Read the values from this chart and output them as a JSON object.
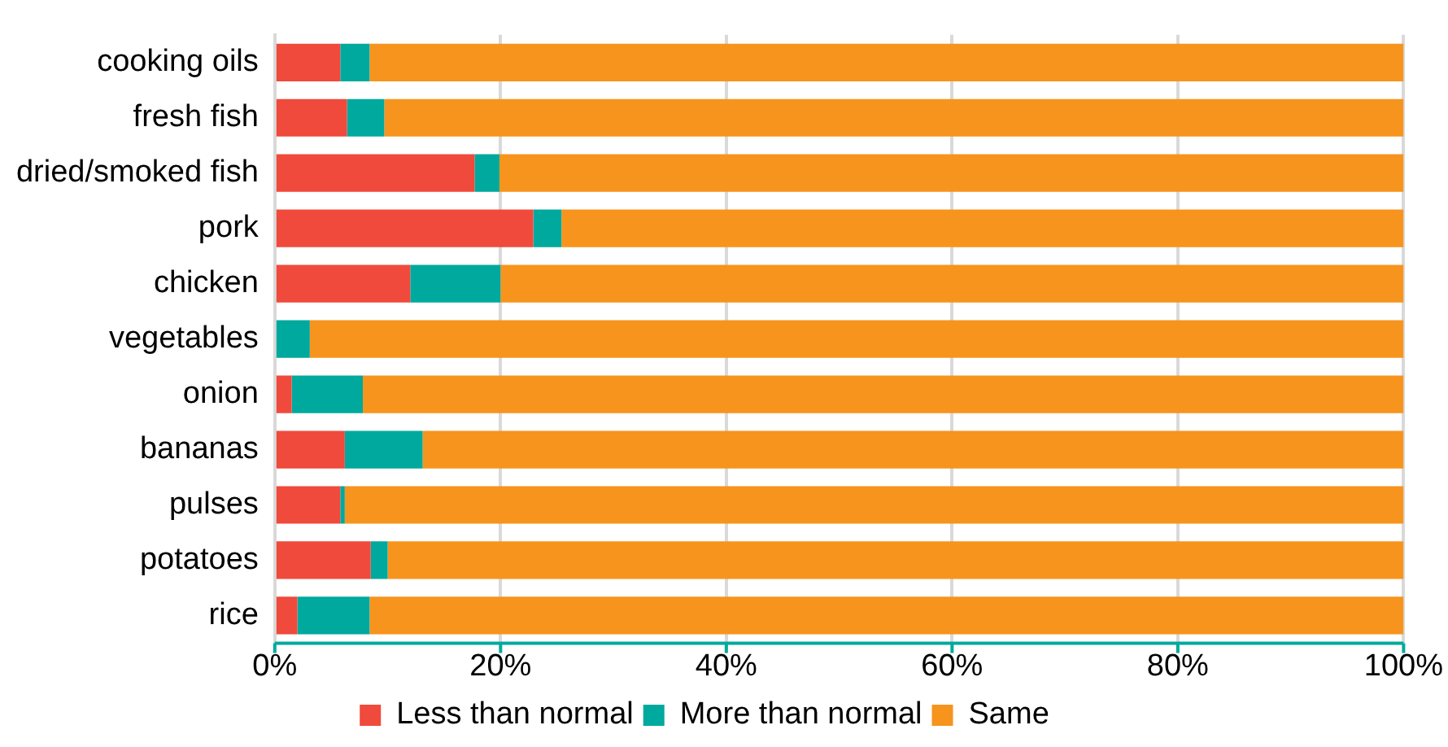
{
  "chart_data": {
    "type": "bar",
    "orientation": "horizontal",
    "stacked": true,
    "categories": [
      "cooking oils",
      "fresh fish",
      "dried/smoked fish",
      "pork",
      "chicken",
      "vegetables",
      "onion",
      "bananas",
      "pulses",
      "potatoes",
      "rice"
    ],
    "series": [
      {
        "name": "Less than normal",
        "color": "#ef4a3c",
        "values": [
          5.8,
          6.4,
          17.7,
          22.9,
          12.0,
          0,
          1.5,
          6.2,
          5.8,
          8.5,
          2.0
        ]
      },
      {
        "name": "More than normal",
        "color": "#00a99d",
        "values": [
          2.6,
          3.3,
          2.2,
          2.5,
          8.0,
          3.1,
          6.3,
          6.9,
          0.4,
          1.5,
          6.4
        ]
      },
      {
        "name": "Same",
        "color": "#f7941d",
        "values": [
          91.6,
          90.3,
          80.1,
          74.6,
          80.0,
          96.9,
          92.2,
          86.9,
          93.8,
          90.0,
          91.6
        ]
      }
    ],
    "xlim": [
      0,
      100
    ],
    "xticks": [
      {
        "value": 0,
        "label": "0%"
      },
      {
        "value": 20,
        "label": "20%"
      },
      {
        "value": 40,
        "label": "40%"
      },
      {
        "value": 60,
        "label": "60%"
      },
      {
        "value": 80,
        "label": "80%"
      },
      {
        "value": 100,
        "label": "100%"
      }
    ],
    "grid": "x",
    "legend": "bottom"
  }
}
